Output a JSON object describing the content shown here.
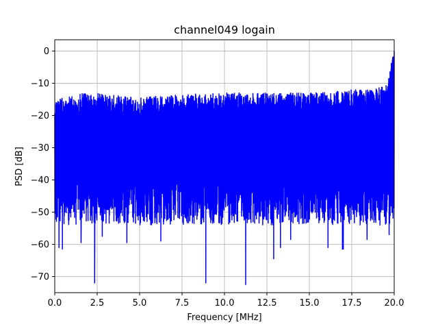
{
  "chart_data": {
    "type": "line",
    "title": "channel049 logain",
    "xlabel": "Frequency [MHz]",
    "ylabel": "PSD [dB]",
    "xlim": [
      0,
      20
    ],
    "ylim": [
      -75,
      3.5
    ],
    "grid": true,
    "xticks": [
      0.0,
      2.5,
      5.0,
      7.5,
      10.0,
      12.5,
      15.0,
      17.5,
      20.0
    ],
    "xtick_labels": [
      "0.0",
      "2.5",
      "5.0",
      "7.5",
      "10.0",
      "12.5",
      "15.0",
      "17.5",
      "20.0"
    ],
    "yticks": [
      0,
      -10,
      -20,
      -30,
      -40,
      -50,
      -60,
      -70
    ],
    "ytick_labels": [
      "0",
      "−10",
      "−20",
      "−30",
      "−40",
      "−50",
      "−60",
      "−70"
    ],
    "series": [
      {
        "color": "#0000ff",
        "description": "dense noisy PSD trace",
        "upper_envelope": {
          "x": [
            0,
            0.5,
            1.0,
            2.0,
            2.5,
            3.0,
            4.0,
            5.0,
            6.0,
            7.5,
            10.0,
            12.5,
            15.0,
            16.5,
            17.5,
            18.5,
            19.0,
            19.5,
            19.7,
            19.85,
            19.95,
            20.0
          ],
          "y": [
            -15.5,
            -14.5,
            -13.5,
            -13,
            -13,
            -13.5,
            -14,
            -14.5,
            -14,
            -13.5,
            -13,
            -13,
            -13,
            -12.5,
            -12,
            -12,
            -11.5,
            -10.5,
            -8,
            -3,
            -1,
            0
          ]
        },
        "baseline_lower": -48,
        "deep_nulls": [
          {
            "x": 0.25,
            "y": -61
          },
          {
            "x": 0.45,
            "y": -61.5
          },
          {
            "x": 1.55,
            "y": -59.5
          },
          {
            "x": 2.35,
            "y": -72
          },
          {
            "x": 2.8,
            "y": -57.5
          },
          {
            "x": 4.25,
            "y": -59.5
          },
          {
            "x": 6.25,
            "y": -59
          },
          {
            "x": 8.9,
            "y": -72
          },
          {
            "x": 11.25,
            "y": -72.5
          },
          {
            "x": 12.9,
            "y": -64.5
          },
          {
            "x": 13.3,
            "y": -61
          },
          {
            "x": 13.9,
            "y": -58.5
          },
          {
            "x": 16.1,
            "y": -61
          },
          {
            "x": 16.95,
            "y": -61.5
          },
          {
            "x": 17.0,
            "y": -61.5
          },
          {
            "x": 18.4,
            "y": -58.5
          },
          {
            "x": 19.7,
            "y": -57
          }
        ]
      }
    ]
  }
}
